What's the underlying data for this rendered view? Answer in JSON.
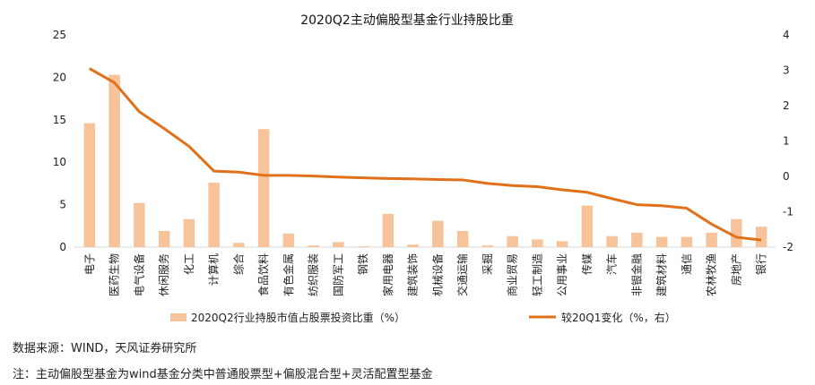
{
  "chart_data": {
    "type": "bar+line",
    "title": "2020Q2主动偏股型基金行业持股比重",
    "categories": [
      "电子",
      "医药生物",
      "电气设备",
      "休闲服务",
      "化工",
      "计算机",
      "综合",
      "食品饮料",
      "有色金属",
      "纺织服装",
      "国防军工",
      "钢铁",
      "家用电器",
      "建筑装饰",
      "机械设备",
      "交通运输",
      "采掘",
      "商业贸易",
      "轻工制造",
      "公用事业",
      "传媒",
      "汽车",
      "非银金融",
      "建筑材料",
      "通信",
      "农林牧渔",
      "房地产",
      "银行"
    ],
    "y_left": {
      "ticks": [
        "0",
        "5",
        "10",
        "15",
        "20",
        "25"
      ],
      "ylim": [
        0,
        25
      ]
    },
    "y_right": {
      "ticks": [
        "-2",
        "-1",
        "0",
        "1",
        "2",
        "3",
        "4"
      ],
      "ylim": [
        -2,
        4
      ]
    },
    "series": [
      {
        "name": "2020Q2行业持股市值占股票投资比重（%）",
        "type": "bar",
        "axis": "left",
        "color": "#f7c39b",
        "values": [
          14.6,
          20.3,
          5.2,
          1.9,
          3.3,
          7.6,
          0.5,
          13.9,
          1.6,
          0.2,
          0.6,
          0.1,
          3.9,
          0.3,
          3.1,
          1.9,
          0.2,
          1.3,
          0.9,
          0.7,
          4.9,
          1.3,
          1.7,
          1.2,
          1.2,
          1.7,
          3.3,
          2.4
        ]
      },
      {
        "name": "较20Q1变化（%，右）",
        "type": "line",
        "axis": "right",
        "color": "#e0711a",
        "values": [
          3.05,
          2.65,
          1.83,
          1.35,
          0.85,
          0.15,
          0.12,
          0.03,
          0.03,
          0.01,
          -0.02,
          -0.04,
          -0.06,
          -0.07,
          -0.09,
          -0.1,
          -0.2,
          -0.26,
          -0.29,
          -0.38,
          -0.45,
          -0.63,
          -0.8,
          -0.83,
          -0.9,
          -1.35,
          -1.72,
          -1.8
        ]
      }
    ]
  },
  "footer": {
    "source": "数据来源：WIND，天风证券研究所",
    "note": "注：主动偏股型基金为wind基金分类中普通股票型+偏股混合型+灵活配置型基金"
  }
}
